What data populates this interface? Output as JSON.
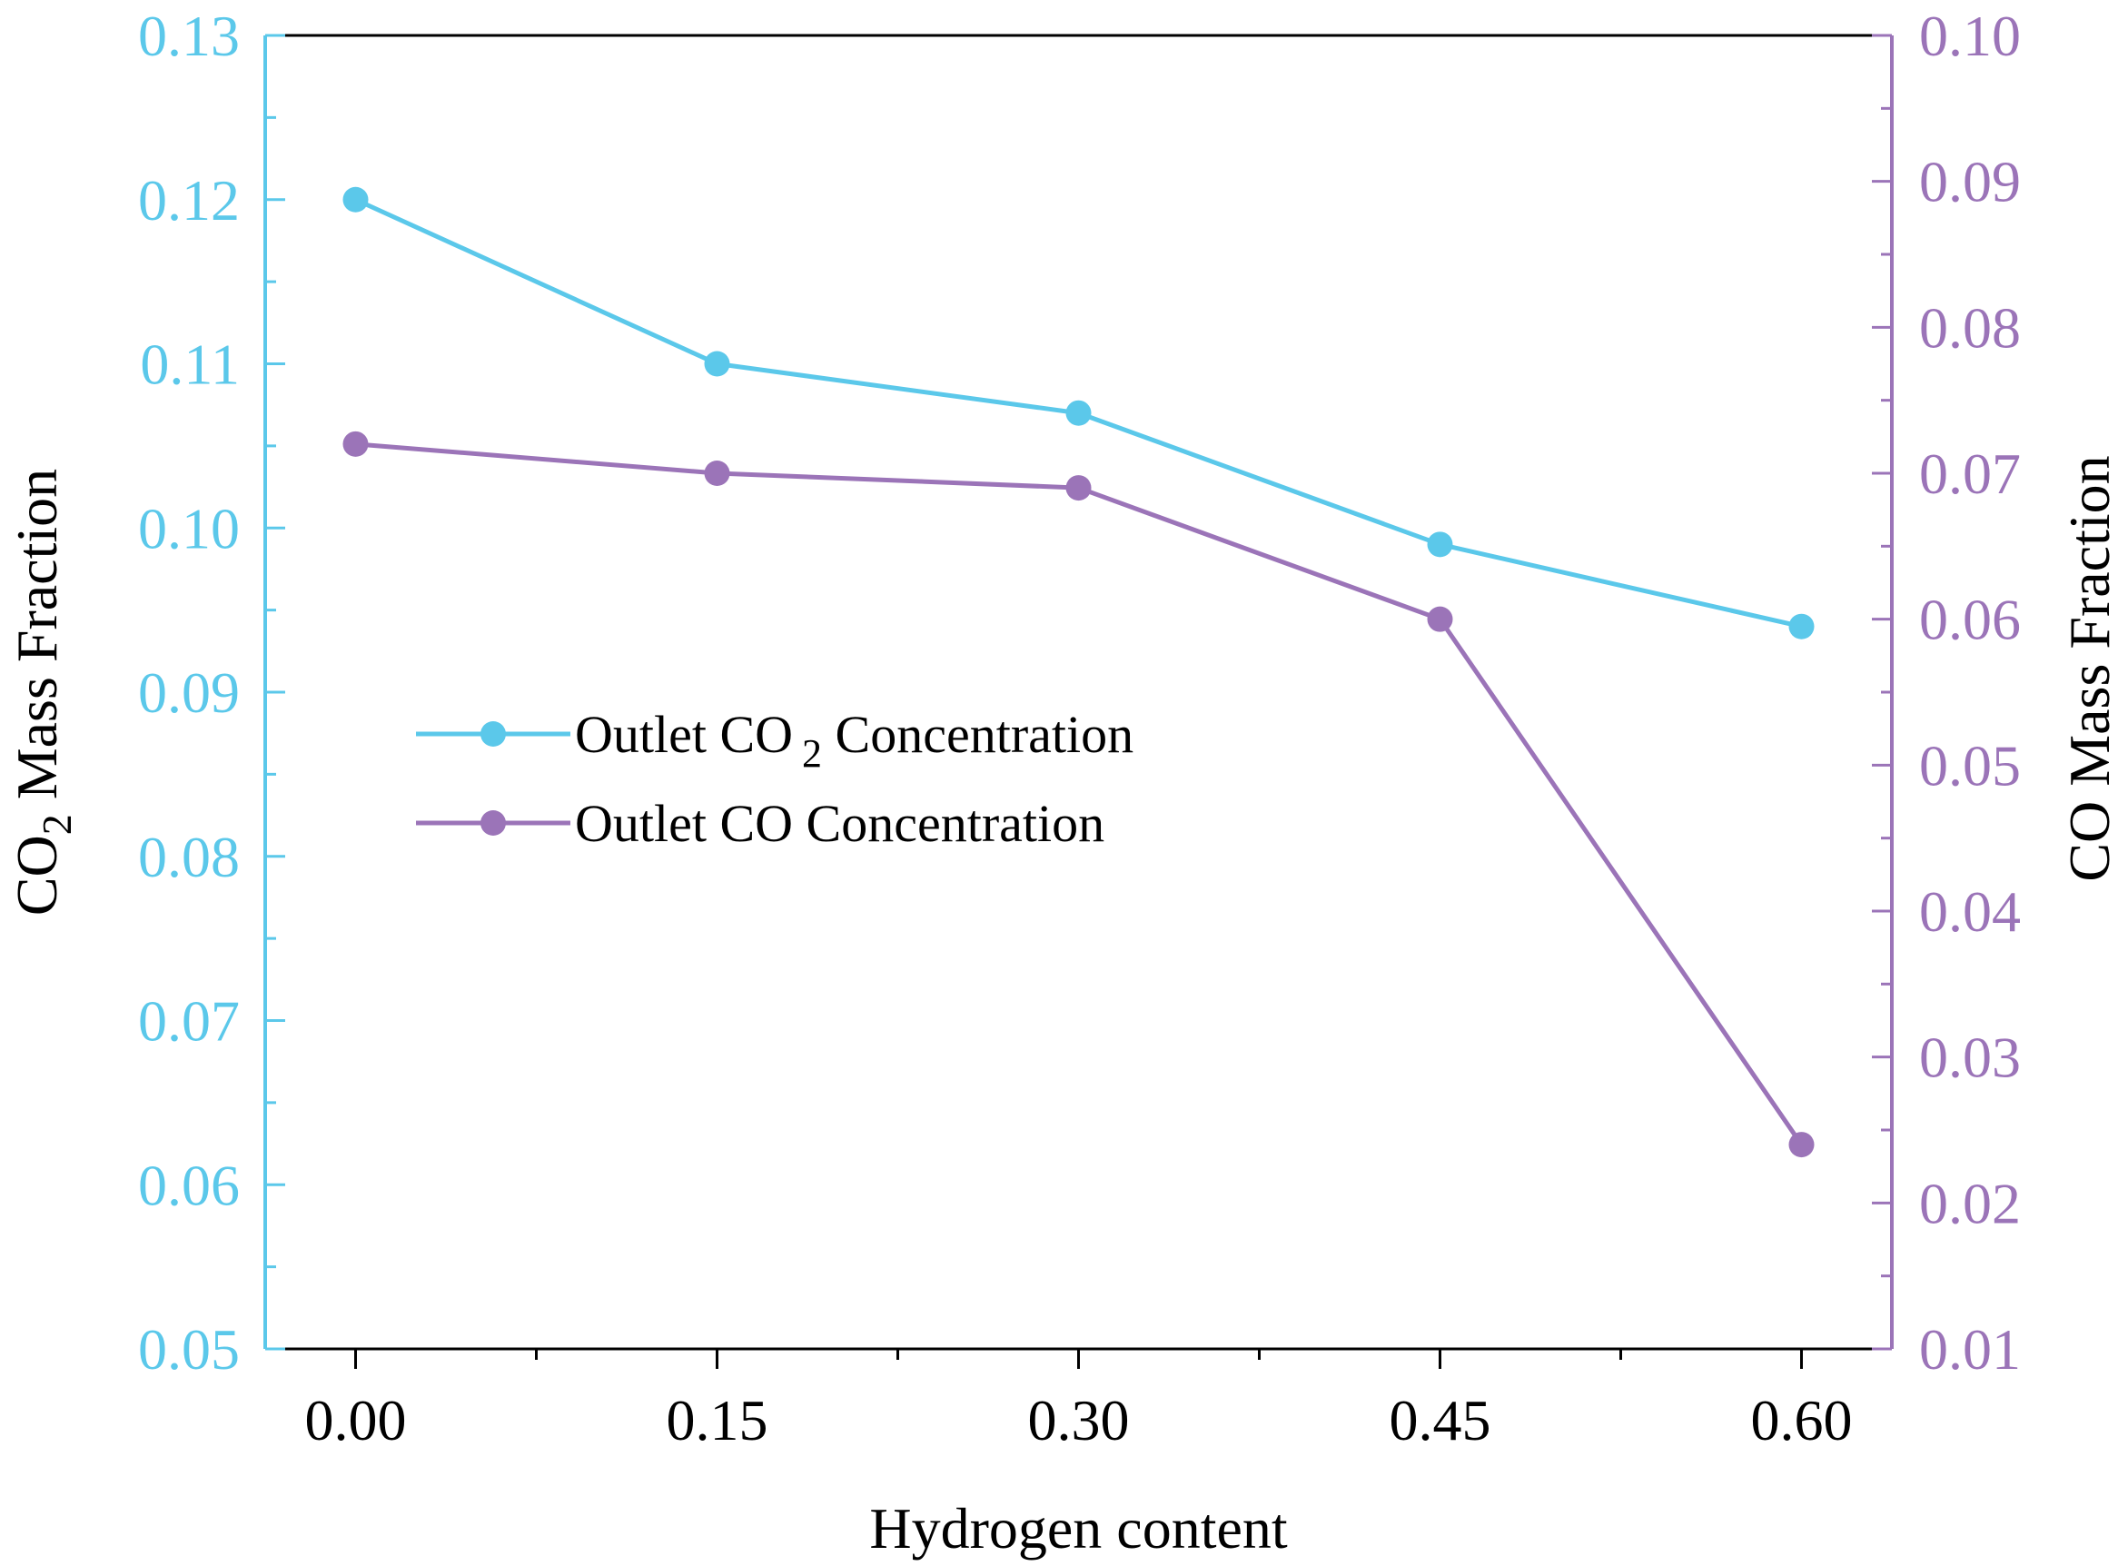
{
  "chart_data": {
    "type": "line",
    "title": "",
    "xlabel": "Hydrogen content",
    "x": [
      0.0,
      0.15,
      0.3,
      0.45,
      0.6
    ],
    "x_tick_labels": [
      "0.00",
      "0.15",
      "0.30",
      "0.45",
      "0.60"
    ],
    "xlim": [
      -0.0375,
      0.6375
    ],
    "y_left": {
      "label_main": "CO",
      "label_sub": "2",
      "label_rest": " Mass Fraction",
      "ylim": [
        0.05,
        0.13
      ],
      "ticks": [
        0.05,
        0.06,
        0.07,
        0.08,
        0.09,
        0.1,
        0.11,
        0.12,
        0.13
      ],
      "tick_labels": [
        "0.05",
        "0.06",
        "0.07",
        "0.08",
        "0.09",
        "0.10",
        "0.11",
        "0.12",
        "0.13"
      ],
      "color": "#5bc8ea"
    },
    "y_right": {
      "label": "CO Mass Fraction",
      "ylim": [
        0.01,
        0.1
      ],
      "ticks": [
        0.01,
        0.02,
        0.03,
        0.04,
        0.05,
        0.06,
        0.07,
        0.08,
        0.09,
        0.1
      ],
      "tick_labels": [
        "0.01",
        "0.02",
        "0.03",
        "0.04",
        "0.05",
        "0.06",
        "0.07",
        "0.08",
        "0.09",
        "0.10"
      ],
      "color": "#9b74b8"
    },
    "series": [
      {
        "name": "Outlet CO2 Concentration",
        "legend_main": "Outlet CO",
        "legend_sub": "2",
        "legend_rest": " Concentration",
        "axis": "left",
        "color": "#5bc8ea",
        "values": [
          0.12,
          0.11,
          0.107,
          0.099,
          0.094
        ]
      },
      {
        "name": "Outlet CO Concentration",
        "legend_main": "Outlet CO Concentration",
        "legend_sub": "",
        "legend_rest": "",
        "axis": "right",
        "color": "#9b74b8",
        "values": [
          0.072,
          0.07,
          0.069,
          0.06,
          0.024
        ]
      }
    ],
    "grid": false,
    "legend_position": "left-middle"
  }
}
